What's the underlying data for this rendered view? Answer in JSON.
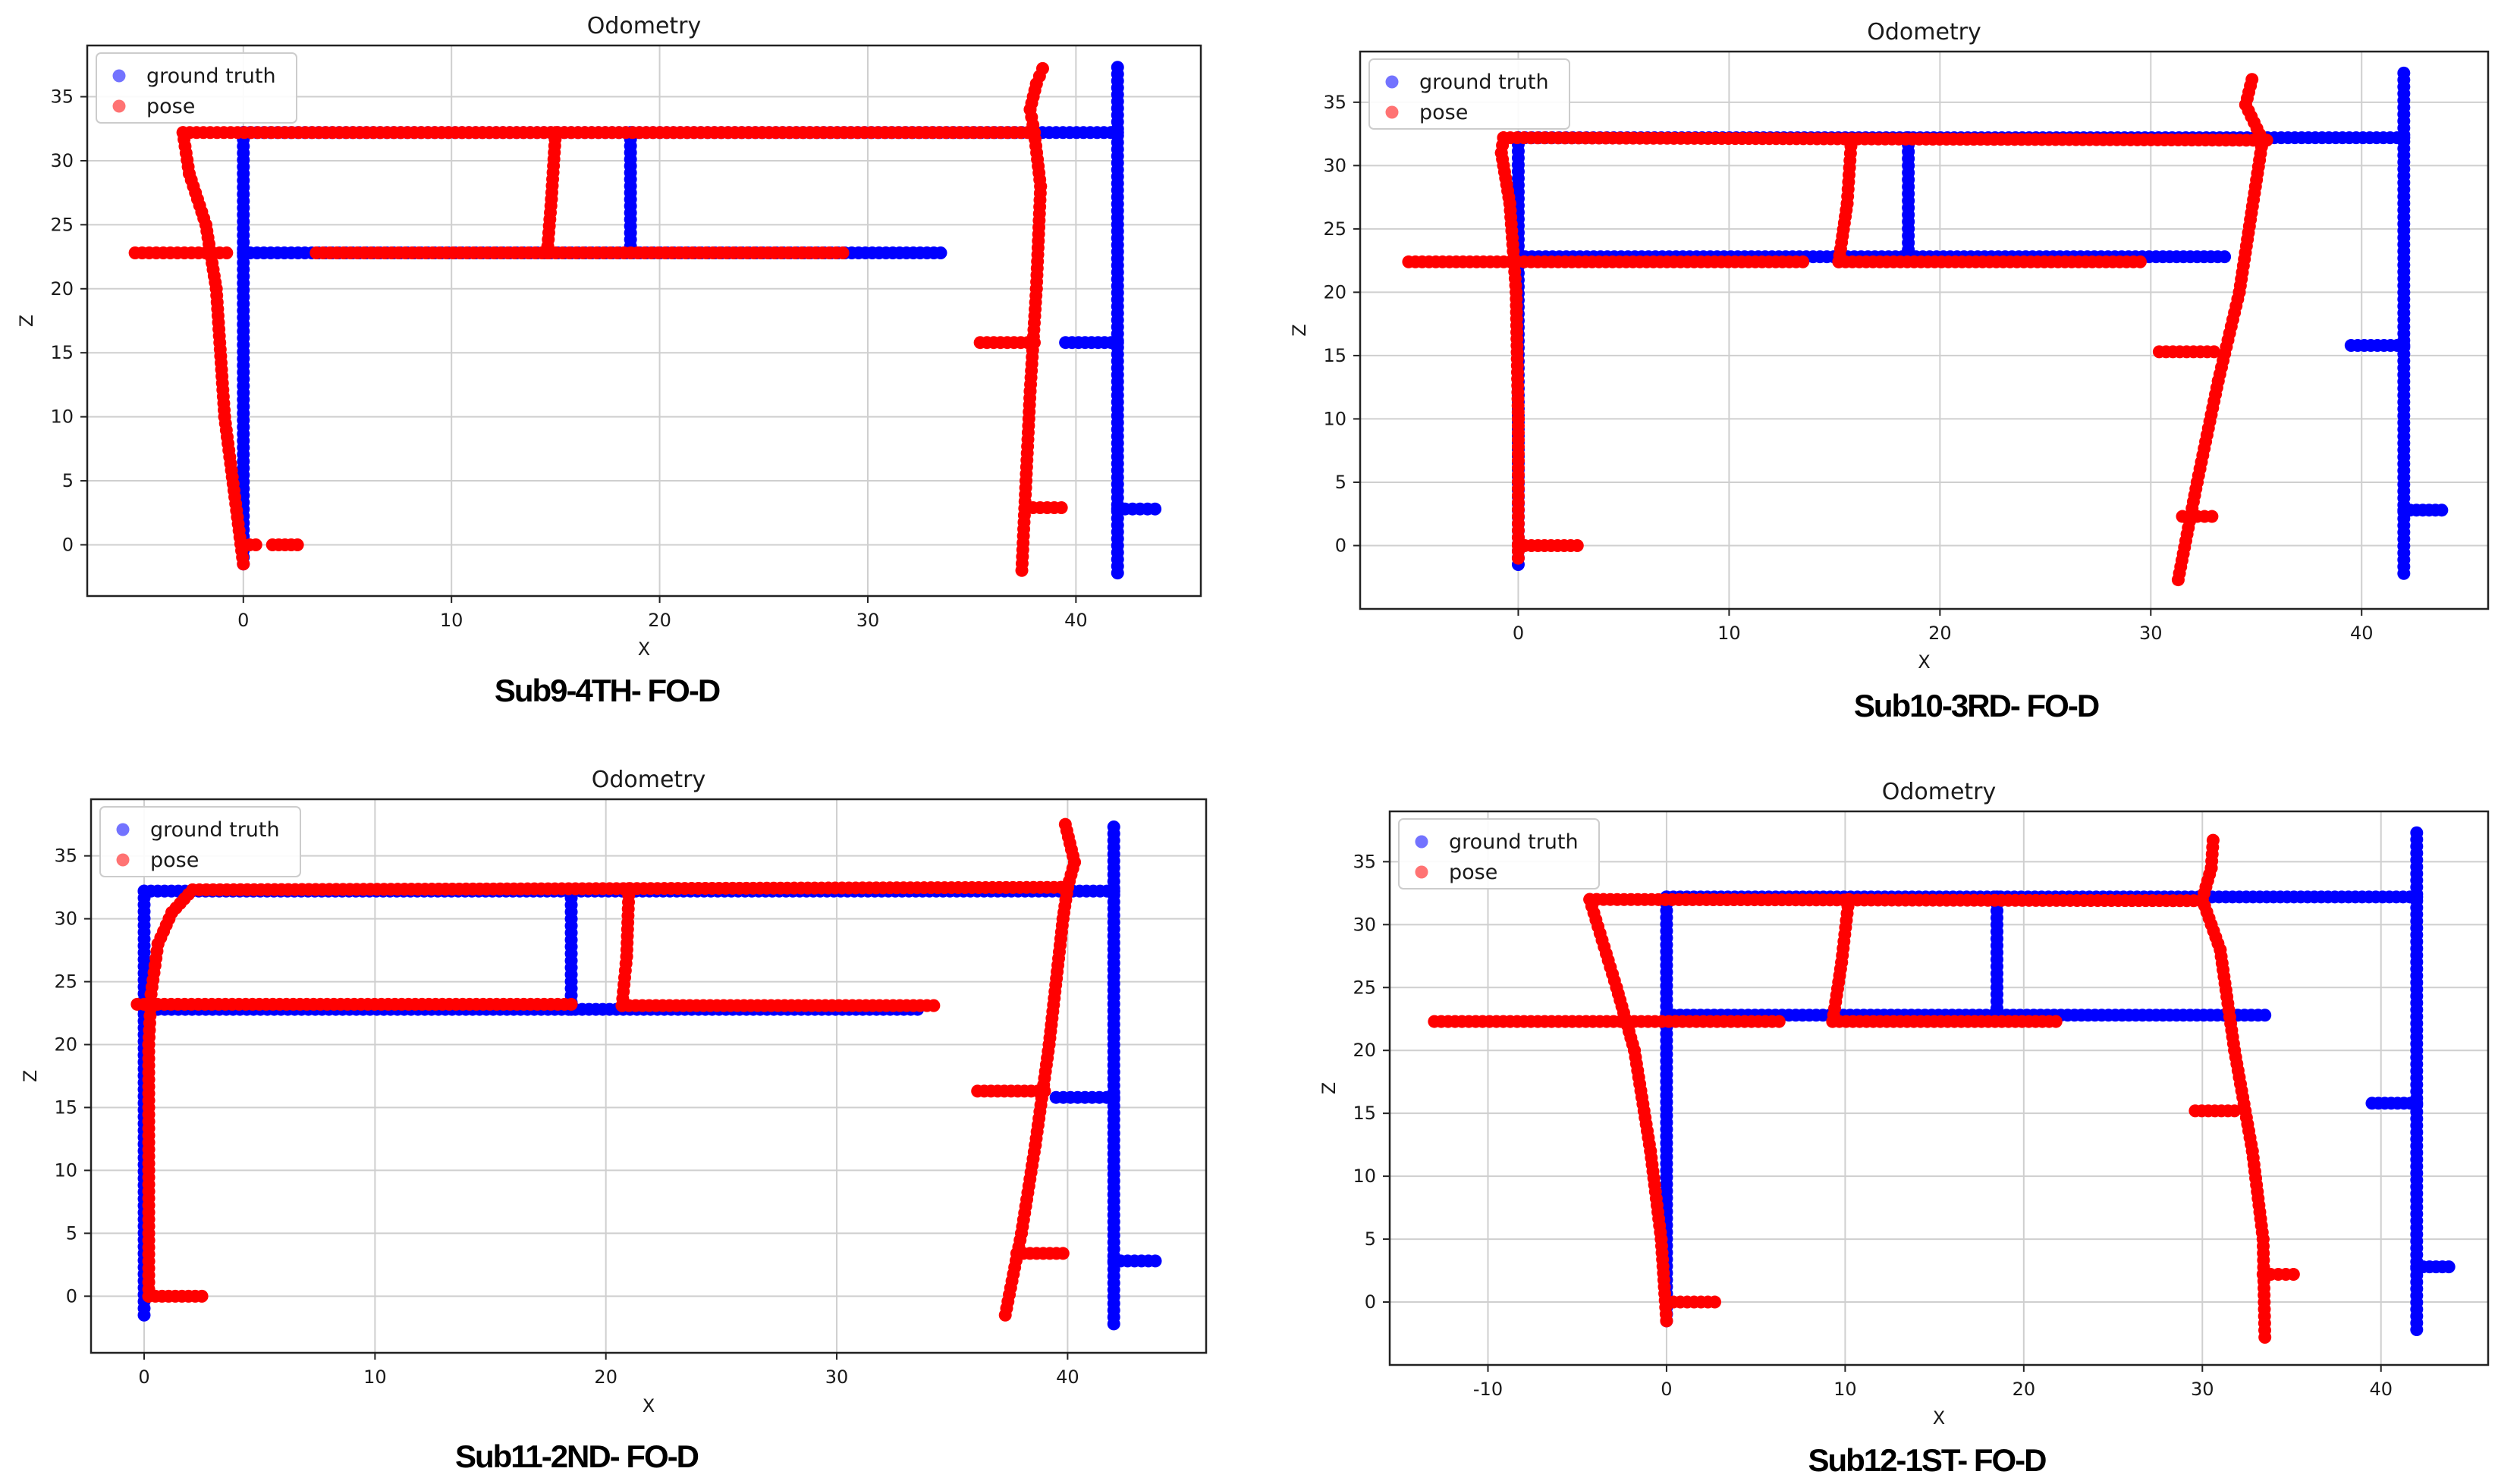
{
  "colors": {
    "ground_truth": "#0000ff",
    "pose": "#ff0000",
    "grid": "#cfcfcf",
    "axes": "#222222"
  },
  "chart_data": [
    {
      "type": "scatter",
      "title": "Odometry",
      "caption": "Sub9-4TH- FO-D",
      "xlabel": "X",
      "ylabel": "Z",
      "xlim": [
        -7.5,
        46
      ],
      "ylim": [
        -4,
        39
      ],
      "xticks": [
        0,
        10,
        20,
        30,
        40
      ],
      "yticks": [
        0,
        5,
        10,
        15,
        20,
        25,
        30,
        35
      ],
      "grid": true,
      "legend": "top-left",
      "series": [
        {
          "name": "ground truth",
          "color": "#0000ff",
          "segments": [
            [
              [
                0,
                -1.5
              ],
              [
                0,
                32.2
              ]
            ],
            [
              [
                0,
                32.2
              ],
              [
                42,
                32.2
              ]
            ],
            [
              [
                0,
                22.8
              ],
              [
                33.5,
                22.8
              ]
            ],
            [
              [
                18.6,
                22.8
              ],
              [
                18.6,
                32.2
              ]
            ],
            [
              [
                42,
                -2.2
              ],
              [
                42,
                37.3
              ]
            ],
            [
              [
                39.5,
                15.8
              ],
              [
                42,
                15.8
              ]
            ],
            [
              [
                42,
                2.8
              ],
              [
                43.8,
                2.8
              ]
            ]
          ]
        },
        {
          "name": "pose",
          "color": "#ff0000",
          "segments": [
            [
              [
                0,
                -1.5
              ],
              [
                -0.9,
                10
              ],
              [
                -1.3,
                20
              ],
              [
                -1.8,
                25
              ],
              [
                -2.6,
                29
              ],
              [
                -2.9,
                32.2
              ]
            ],
            [
              [
                -2.9,
                32.2
              ],
              [
                38,
                32.2
              ]
            ],
            [
              [
                -5.2,
                22.8
              ],
              [
                -0.8,
                22.8
              ]
            ],
            [
              [
                3.5,
                22.8
              ],
              [
                28.8,
                22.8
              ]
            ],
            [
              [
                14.6,
                22.8
              ],
              [
                14.8,
                27
              ],
              [
                15,
                32.2
              ]
            ],
            [
              [
                37.4,
                -2
              ],
              [
                37.6,
                5
              ],
              [
                37.8,
                12
              ],
              [
                38.1,
                20
              ],
              [
                38.3,
                28
              ],
              [
                38,
                32.2
              ]
            ],
            [
              [
                38,
                32.2
              ],
              [
                37.8,
                34
              ],
              [
                38.1,
                36
              ],
              [
                38.4,
                37.2
              ]
            ],
            [
              [
                35.4,
                15.8
              ],
              [
                38,
                15.8
              ]
            ],
            [
              [
                37.6,
                2.9
              ],
              [
                39.3,
                2.9
              ]
            ],
            [
              [
                0,
                0
              ],
              [
                0.6,
                0
              ]
            ],
            [
              [
                1.4,
                0
              ],
              [
                2.6,
                0
              ]
            ]
          ]
        }
      ]
    },
    {
      "type": "scatter",
      "title": "Odometry",
      "caption": "Sub10-3RD- FO-D",
      "xlabel": "X",
      "ylabel": "Z",
      "xlim": [
        -7.5,
        46
      ],
      "ylim": [
        -5,
        39
      ],
      "xticks": [
        0,
        10,
        20,
        30,
        40
      ],
      "yticks": [
        0,
        5,
        10,
        15,
        20,
        25,
        30,
        35
      ],
      "grid": true,
      "legend": "top-left",
      "series": [
        {
          "name": "ground truth",
          "color": "#0000ff",
          "segments": [
            [
              [
                0,
                -1.5
              ],
              [
                0,
                32.2
              ]
            ],
            [
              [
                0,
                32.2
              ],
              [
                42,
                32.2
              ]
            ],
            [
              [
                0,
                22.8
              ],
              [
                33.5,
                22.8
              ]
            ],
            [
              [
                18.5,
                22.8
              ],
              [
                18.5,
                32.2
              ]
            ],
            [
              [
                42,
                -2.2
              ],
              [
                42,
                37.3
              ]
            ],
            [
              [
                39.5,
                15.8
              ],
              [
                42,
                15.8
              ]
            ],
            [
              [
                42,
                2.8
              ],
              [
                43.8,
                2.8
              ]
            ]
          ]
        },
        {
          "name": "pose",
          "color": "#ff0000",
          "segments": [
            [
              [
                0,
                -1
              ],
              [
                0,
                10
              ],
              [
                -0.1,
                20
              ],
              [
                -0.4,
                27
              ],
              [
                -0.8,
                31
              ],
              [
                -0.7,
                32.2
              ]
            ],
            [
              [
                -0.7,
                32.2
              ],
              [
                35.5,
                32
              ]
            ],
            [
              [
                -5.2,
                22.4
              ],
              [
                13.5,
                22.4
              ]
            ],
            [
              [
                15.2,
                22.4
              ],
              [
                29.5,
                22.4
              ]
            ],
            [
              [
                15.2,
                22.4
              ],
              [
                15.6,
                27
              ],
              [
                15.8,
                32.1
              ]
            ],
            [
              [
                31.3,
                -2.7
              ],
              [
                32.2,
                5
              ],
              [
                33.2,
                13
              ],
              [
                34.2,
                20
              ],
              [
                35.3,
                32
              ]
            ],
            [
              [
                35.3,
                32
              ],
              [
                34.5,
                34.8
              ],
              [
                34.8,
                36.8
              ]
            ],
            [
              [
                30.4,
                15.3
              ],
              [
                33,
                15.3
              ]
            ],
            [
              [
                31.5,
                2.3
              ],
              [
                32.9,
                2.3
              ]
            ],
            [
              [
                0,
                0
              ],
              [
                2.8,
                0
              ]
            ]
          ]
        }
      ]
    },
    {
      "type": "scatter",
      "title": "Odometry",
      "caption": "Sub11-2ND- FO-D",
      "xlabel": "X",
      "ylabel": "Z",
      "xlim": [
        -2.3,
        46
      ],
      "ylim": [
        -4.5,
        39.5
      ],
      "xticks": [
        0,
        10,
        20,
        30,
        40
      ],
      "yticks": [
        0,
        5,
        10,
        15,
        20,
        25,
        30,
        35
      ],
      "grid": true,
      "legend": "top-left",
      "series": [
        {
          "name": "ground truth",
          "color": "#0000ff",
          "segments": [
            [
              [
                0,
                -1.5
              ],
              [
                0,
                32.2
              ]
            ],
            [
              [
                0,
                32.2
              ],
              [
                42,
                32.2
              ]
            ],
            [
              [
                0,
                22.8
              ],
              [
                33.5,
                22.8
              ]
            ],
            [
              [
                18.5,
                22.8
              ],
              [
                18.5,
                32.2
              ]
            ],
            [
              [
                42,
                -2.2
              ],
              [
                42,
                37.3
              ]
            ],
            [
              [
                39.5,
                15.8
              ],
              [
                42,
                15.8
              ]
            ],
            [
              [
                42,
                2.8
              ],
              [
                43.8,
                2.8
              ]
            ]
          ]
        },
        {
          "name": "pose",
          "color": "#ff0000",
          "segments": [
            [
              [
                0.2,
                0
              ],
              [
                0.2,
                10
              ],
              [
                0.2,
                20
              ],
              [
                0.3,
                24
              ],
              [
                0.6,
                28
              ],
              [
                1.2,
                30.5
              ],
              [
                2.1,
                32.3
              ]
            ],
            [
              [
                2.1,
                32.3
              ],
              [
                40,
                32.5
              ]
            ],
            [
              [
                -0.3,
                23.2
              ],
              [
                18.5,
                23.2
              ]
            ],
            [
              [
                20.7,
                23.1
              ],
              [
                34.2,
                23.1
              ]
            ],
            [
              [
                20.7,
                23.1
              ],
              [
                20.9,
                27
              ],
              [
                21,
                32.4
              ]
            ],
            [
              [
                37.3,
                -1.5
              ],
              [
                38,
                5
              ],
              [
                38.6,
                12
              ],
              [
                39.2,
                20
              ],
              [
                39.8,
                30
              ],
              [
                40,
                32.5
              ]
            ],
            [
              [
                40,
                32.5
              ],
              [
                40.3,
                34.5
              ],
              [
                39.9,
                37.5
              ]
            ],
            [
              [
                36.1,
                16.3
              ],
              [
                39,
                16.3
              ]
            ],
            [
              [
                37.8,
                3.4
              ],
              [
                39.8,
                3.4
              ]
            ],
            [
              [
                0.2,
                0
              ],
              [
                2.5,
                0
              ]
            ]
          ]
        }
      ]
    },
    {
      "type": "scatter",
      "title": "Odometry",
      "caption": "Sub12-1ST- FO-D",
      "xlabel": "X",
      "ylabel": "Z",
      "xlim": [
        -15.5,
        46
      ],
      "ylim": [
        -5,
        39
      ],
      "xticks": [
        -10,
        0,
        10,
        20,
        30,
        40
      ],
      "yticks": [
        0,
        5,
        10,
        15,
        20,
        25,
        30,
        35
      ],
      "grid": true,
      "legend": "top-left",
      "series": [
        {
          "name": "ground truth",
          "color": "#0000ff",
          "segments": [
            [
              [
                0,
                -1.5
              ],
              [
                0,
                32.2
              ]
            ],
            [
              [
                0,
                32.2
              ],
              [
                42,
                32.2
              ]
            ],
            [
              [
                0,
                22.8
              ],
              [
                33.5,
                22.8
              ]
            ],
            [
              [
                18.5,
                22.8
              ],
              [
                18.5,
                32.2
              ]
            ],
            [
              [
                42,
                -2.2
              ],
              [
                42,
                37.3
              ]
            ],
            [
              [
                39.5,
                15.8
              ],
              [
                42,
                15.8
              ]
            ],
            [
              [
                42,
                2.8
              ],
              [
                43.8,
                2.8
              ]
            ]
          ]
        },
        {
          "name": "pose",
          "color": "#ff0000",
          "segments": [
            [
              [
                0,
                -1.5
              ],
              [
                -0.3,
                5
              ],
              [
                -0.9,
                12
              ],
              [
                -1.8,
                20
              ],
              [
                -2.8,
                25
              ],
              [
                -4.3,
                32
              ]
            ],
            [
              [
                -4.3,
                32
              ],
              [
                29.9,
                31.9
              ]
            ],
            [
              [
                -13,
                22.3
              ],
              [
                6.3,
                22.3
              ]
            ],
            [
              [
                9.3,
                22.3
              ],
              [
                21.8,
                22.3
              ]
            ],
            [
              [
                9.3,
                22.3
              ],
              [
                9.8,
                27
              ],
              [
                10.2,
                32
              ]
            ],
            [
              [
                33.5,
                -2.8
              ],
              [
                33.4,
                5
              ],
              [
                32.8,
                12
              ],
              [
                31.8,
                20
              ],
              [
                31,
                28
              ],
              [
                30,
                32
              ]
            ],
            [
              [
                30,
                32
              ],
              [
                30.5,
                34.5
              ],
              [
                30.6,
                36.7
              ]
            ],
            [
              [
                29.6,
                15.2
              ],
              [
                31.8,
                15.2
              ]
            ],
            [
              [
                33.4,
                2.2
              ],
              [
                35.1,
                2.2
              ]
            ],
            [
              [
                0,
                0
              ],
              [
                2.7,
                0
              ]
            ]
          ]
        }
      ]
    }
  ]
}
